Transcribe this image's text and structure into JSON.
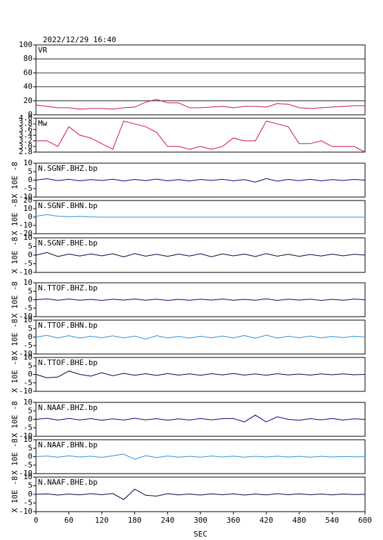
{
  "chart_data": [
    {
      "type": "line",
      "title": "2022/12/29 16:40",
      "label": "VR",
      "color": "#d0103a",
      "grid": true,
      "xlim": [
        0,
        600
      ],
      "x": [
        0,
        20,
        40,
        60,
        80,
        100,
        120,
        140,
        160,
        180,
        200,
        220,
        240,
        260,
        280,
        300,
        320,
        340,
        360,
        380,
        400,
        420,
        440,
        460,
        480,
        500,
        520,
        540,
        560,
        580,
        600
      ],
      "values": [
        14,
        12,
        10,
        10,
        8,
        9,
        9,
        8,
        10,
        11,
        18,
        22,
        17,
        17,
        10,
        10,
        11,
        12,
        10,
        12,
        12,
        11,
        16,
        15,
        10,
        9,
        10,
        11,
        12,
        13,
        13
      ],
      "ylim": [
        0,
        100
      ],
      "yticks": [
        0,
        20,
        40,
        60,
        80,
        100
      ]
    },
    {
      "type": "line",
      "label": "Mw",
      "color": "#d0103a",
      "grid": false,
      "xlim": [
        0,
        600
      ],
      "x": [
        0,
        20,
        40,
        60,
        80,
        100,
        120,
        140,
        160,
        180,
        200,
        220,
        240,
        260,
        280,
        300,
        320,
        340,
        360,
        380,
        400,
        420,
        440,
        460,
        480,
        500,
        520,
        540,
        560,
        580,
        600
      ],
      "values": [
        3.2,
        3.2,
        3.0,
        3.7,
        3.4,
        3.3,
        3.1,
        2.9,
        3.9,
        3.8,
        3.7,
        3.5,
        3.0,
        3.0,
        2.9,
        3.0,
        2.9,
        3.0,
        3.3,
        3.2,
        3.2,
        3.9,
        3.8,
        3.7,
        3.1,
        3.1,
        3.2,
        3.0,
        3.0,
        3.0,
        2.8
      ],
      "ylim": [
        2.8,
        4.0
      ],
      "yticks": [
        2.8,
        {
          "value": 3,
          "label": "3.0"
        },
        3.2,
        3.4,
        3.6,
        3.8,
        {
          "value": 4,
          "label": "4.0"
        }
      ]
    },
    {
      "type": "line",
      "label": "N.SGNF.BHZ.bp",
      "ylabel": "X 10E -8",
      "color": "#00008b",
      "grid": false,
      "xlim": [
        0,
        600
      ],
      "x": [
        0,
        20,
        40,
        60,
        80,
        100,
        120,
        140,
        160,
        180,
        200,
        220,
        240,
        260,
        280,
        300,
        320,
        340,
        360,
        380,
        400,
        420,
        440,
        460,
        480,
        500,
        520,
        540,
        560,
        580,
        600
      ],
      "values": [
        0,
        0.8,
        -0.3,
        0.5,
        -0.4,
        0.3,
        -0.2,
        0.5,
        -0.5,
        0.4,
        -0.3,
        0.6,
        -0.4,
        0.3,
        -0.5,
        0.4,
        -0.2,
        0.5,
        -0.4,
        0.3,
        -1.2,
        0.9,
        -0.6,
        0.4,
        -0.3,
        0.5,
        -0.4,
        0.3,
        -0.2,
        0.4,
        0
      ],
      "ylim": [
        -10,
        10
      ],
      "yticks": [
        -10,
        -5,
        0,
        5,
        10
      ]
    },
    {
      "type": "line",
      "label": "N.SGNF.BHN.bp",
      "ylabel": "X 10E -8",
      "color": "#2a8fd8",
      "grid": false,
      "xlim": [
        0,
        600
      ],
      "x": [
        0,
        20,
        40,
        60,
        80,
        100,
        120,
        140,
        160,
        180,
        200,
        220,
        240,
        260,
        280,
        300,
        320,
        340,
        360,
        380,
        400,
        420,
        440,
        460,
        480,
        500,
        520,
        540,
        560,
        580,
        600
      ],
      "values": [
        1,
        3,
        1,
        0.5,
        0.8,
        0.2,
        0,
        0,
        0,
        0,
        0,
        0,
        0,
        0,
        0,
        0,
        0,
        0,
        0,
        0,
        0,
        0,
        0,
        0,
        0,
        0,
        0,
        0,
        0,
        0,
        0
      ],
      "ylim": [
        -20,
        20
      ],
      "yticks": [
        -20,
        -10,
        0,
        10,
        20
      ]
    },
    {
      "type": "line",
      "label": "N.SGNF.BHE.bp",
      "ylabel": "X 10E -8",
      "color": "#000040",
      "grid": false,
      "xlim": [
        0,
        600
      ],
      "x": [
        0,
        20,
        40,
        60,
        80,
        100,
        120,
        140,
        160,
        180,
        200,
        220,
        240,
        260,
        280,
        300,
        320,
        340,
        360,
        380,
        400,
        420,
        440,
        460,
        480,
        500,
        520,
        540,
        560,
        580,
        600
      ],
      "values": [
        0,
        1.5,
        -0.8,
        0.6,
        -0.5,
        0.7,
        -0.4,
        0.8,
        -1,
        0.9,
        -0.6,
        0.5,
        -0.7,
        0.6,
        -0.5,
        0.8,
        -0.9,
        0.7,
        -0.4,
        0.6,
        -0.8,
        0.9,
        -0.6,
        0.5,
        -0.7,
        0.4,
        -0.5,
        0.6,
        -0.4,
        0.5,
        0
      ],
      "ylim": [
        -10,
        10
      ],
      "yticks": [
        -10,
        -5,
        0,
        5,
        10
      ]
    },
    {
      "type": "line",
      "label": "N.TTOF.BHZ.bp",
      "ylabel": "X 10E -8",
      "color": "#00008b",
      "grid": false,
      "xlim": [
        0,
        600
      ],
      "x": [
        0,
        20,
        40,
        60,
        80,
        100,
        120,
        140,
        160,
        180,
        200,
        220,
        240,
        260,
        280,
        300,
        320,
        340,
        360,
        380,
        400,
        420,
        440,
        460,
        480,
        500,
        520,
        540,
        560,
        580,
        600
      ],
      "values": [
        0,
        0.5,
        -0.3,
        0.4,
        -0.3,
        0.2,
        -0.4,
        0.3,
        -0.2,
        0.4,
        -0.3,
        0.3,
        -0.4,
        0.2,
        -0.3,
        0.3,
        -0.2,
        0.4,
        -0.3,
        0.2,
        -0.3,
        0.5,
        -0.4,
        0.3,
        -0.2,
        0.3,
        -0.4,
        0.2,
        -0.3,
        0.4,
        0
      ],
      "ylim": [
        -10,
        10
      ],
      "yticks": [
        -10,
        -5,
        0,
        5,
        10
      ]
    },
    {
      "type": "line",
      "label": "N.TTOF.BHN.bp",
      "ylabel": "X 10E -8",
      "color": "#2a8fd8",
      "grid": false,
      "xlim": [
        0,
        600
      ],
      "x": [
        0,
        20,
        40,
        60,
        80,
        100,
        120,
        140,
        160,
        180,
        200,
        220,
        240,
        260,
        280,
        300,
        320,
        340,
        360,
        380,
        400,
        420,
        440,
        460,
        480,
        500,
        520,
        540,
        560,
        580,
        600
      ],
      "values": [
        0,
        1,
        -0.5,
        0.8,
        -0.6,
        0.5,
        -0.4,
        0.7,
        -0.5,
        0.6,
        -1.2,
        0.8,
        -0.5,
        0.4,
        -0.6,
        0.5,
        -0.4,
        0.6,
        -0.5,
        0.9,
        -0.7,
        1.1,
        -0.6,
        0.5,
        -0.4,
        0.6,
        -0.5,
        0.4,
        -0.3,
        0.5,
        0
      ],
      "ylim": [
        -10,
        10
      ],
      "yticks": [
        -10,
        -5,
        0,
        5,
        10
      ]
    },
    {
      "type": "line",
      "label": "N.TTOF.BHE.bp",
      "ylabel": "X 10E -8",
      "color": "#000040",
      "grid": false,
      "xlim": [
        0,
        600
      ],
      "x": [
        0,
        20,
        40,
        60,
        80,
        100,
        120,
        140,
        160,
        180,
        200,
        220,
        240,
        260,
        280,
        300,
        320,
        340,
        360,
        380,
        400,
        420,
        440,
        460,
        480,
        500,
        520,
        540,
        560,
        580,
        600
      ],
      "values": [
        0,
        -2,
        -1.5,
        2,
        0,
        -1,
        1,
        -0.8,
        0.6,
        -0.5,
        0.4,
        -0.6,
        0.5,
        -0.4,
        0.3,
        -0.5,
        0.4,
        -0.3,
        0.5,
        -0.4,
        0.3,
        -0.5,
        0.4,
        -0.3,
        0.2,
        -0.4,
        0.3,
        -0.2,
        0.3,
        -0.2,
        0
      ],
      "ylim": [
        -10,
        10
      ],
      "yticks": [
        -10,
        -5,
        0,
        5,
        10
      ]
    },
    {
      "type": "line",
      "label": "N.NAAF.BHZ.bp",
      "ylabel": "X 10E -8",
      "color": "#00008b",
      "grid": false,
      "xlim": [
        0,
        600
      ],
      "x": [
        0,
        20,
        40,
        60,
        80,
        100,
        120,
        140,
        160,
        180,
        200,
        220,
        240,
        260,
        280,
        300,
        320,
        340,
        360,
        380,
        400,
        420,
        440,
        460,
        480,
        500,
        520,
        540,
        560,
        580,
        600
      ],
      "values": [
        0,
        0.6,
        -0.4,
        0.5,
        -0.3,
        0.4,
        -0.5,
        0.3,
        -0.4,
        0.6,
        -0.3,
        0.4,
        -0.5,
        0.3,
        -0.4,
        0.5,
        -0.3,
        0.4,
        0.5,
        -1.5,
        2.5,
        -1.5,
        1.5,
        0,
        -0.5,
        0.4,
        -0.3,
        0.5,
        -0.4,
        0.3,
        0
      ],
      "ylim": [
        -10,
        10
      ],
      "yticks": [
        -10,
        -5,
        0,
        5,
        10
      ]
    },
    {
      "type": "line",
      "label": "N.NAAF.BHN.bp",
      "ylabel": "X 10E -8",
      "color": "#2a8fd8",
      "grid": false,
      "xlim": [
        0,
        600
      ],
      "x": [
        0,
        20,
        40,
        60,
        80,
        100,
        120,
        140,
        160,
        180,
        200,
        220,
        240,
        260,
        280,
        300,
        320,
        340,
        360,
        380,
        400,
        420,
        440,
        460,
        480,
        500,
        520,
        540,
        560,
        580,
        600
      ],
      "values": [
        0,
        0.4,
        -0.3,
        0.5,
        -0.2,
        0.3,
        -0.4,
        0.5,
        1.5,
        -1.5,
        0.6,
        -0.5,
        0.4,
        -0.3,
        0.2,
        -0.3,
        0.4,
        -0.2,
        0.3,
        -0.3,
        0.2,
        -0.2,
        0.3,
        -0.2,
        0.2,
        -0.3,
        0.2,
        -0.2,
        0.1,
        -0.1,
        0
      ],
      "ylim": [
        -10,
        10
      ],
      "yticks": [
        -10,
        -5,
        0,
        5,
        10
      ]
    },
    {
      "type": "line",
      "label": "N.NAAF.BHE.bp",
      "ylabel": "X 10E -8",
      "color": "#000040",
      "grid": false,
      "xlim": [
        0,
        600
      ],
      "x": [
        0,
        20,
        40,
        60,
        80,
        100,
        120,
        140,
        160,
        180,
        200,
        220,
        240,
        260,
        280,
        300,
        320,
        340,
        360,
        380,
        400,
        420,
        440,
        460,
        480,
        500,
        520,
        540,
        560,
        580,
        600
      ],
      "values": [
        0,
        0.3,
        -0.4,
        0.2,
        -0.3,
        0.4,
        -0.2,
        0.5,
        -3,
        3,
        -0.5,
        -1,
        0.4,
        -0.3,
        0.2,
        -0.4,
        0.3,
        -0.2,
        0.3,
        -0.4,
        0.2,
        -0.3,
        0.4,
        -0.2,
        0.3,
        -0.2,
        0.2,
        -0.3,
        0.2,
        -0.1,
        0
      ],
      "ylim": [
        -10,
        10
      ],
      "yticks": [
        -10,
        -5,
        0,
        5,
        10
      ],
      "xticks": [
        0,
        60,
        120,
        180,
        240,
        300,
        360,
        420,
        480,
        540,
        600
      ],
      "xlabel": "SEC"
    }
  ]
}
